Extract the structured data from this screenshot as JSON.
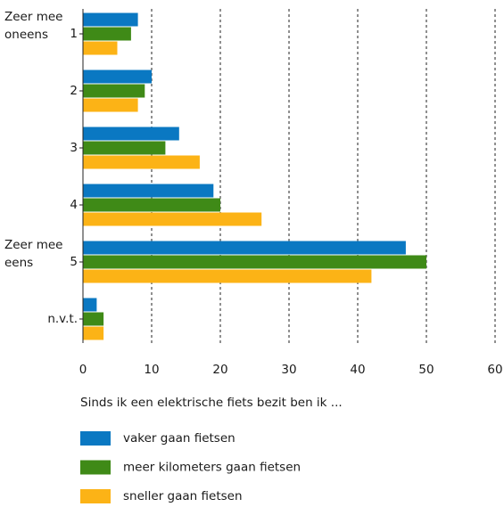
{
  "chart_data": {
    "type": "barh",
    "categories": [
      "1",
      "2",
      "3",
      "4",
      "5",
      "n.v.t."
    ],
    "annotations": [
      [
        "Zeer mee",
        "oneens"
      ],
      [
        "Zeer mee",
        "eens"
      ]
    ],
    "series": [
      {
        "name": "vaker gaan fietsen",
        "color": "#0a78c2",
        "values": [
          8,
          10,
          14,
          19,
          47,
          2
        ]
      },
      {
        "name": "meer kilometers gaan fietsen",
        "color": "#3f8a17",
        "values": [
          7,
          9,
          12,
          20,
          50,
          3
        ]
      },
      {
        "name": "sneller gaan fietsen",
        "color": "#fcb316",
        "values": [
          5,
          8,
          17,
          26,
          42,
          3
        ]
      }
    ],
    "xlabel": "Sinds ik een elektrische fiets bezit ben ik ...",
    "xlim": [
      0,
      60
    ],
    "xticks": [
      0,
      10,
      20,
      30,
      40,
      50,
      60
    ],
    "grid": true
  }
}
